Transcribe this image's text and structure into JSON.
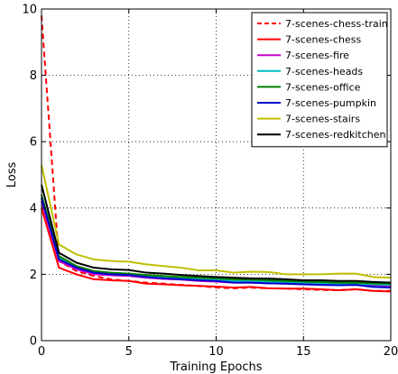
{
  "chart_data": {
    "type": "line",
    "xlabel": "Training Epochs",
    "ylabel": "Loss",
    "xlim": [
      0,
      20
    ],
    "ylim": [
      0,
      10
    ],
    "x_ticks": [
      0,
      5,
      10,
      15,
      20
    ],
    "y_ticks": [
      0,
      2,
      4,
      6,
      8,
      10
    ],
    "grid": true,
    "legend_position": "top-right",
    "x": [
      0,
      1,
      2,
      3,
      4,
      5,
      6,
      7,
      8,
      9,
      10,
      11,
      12,
      13,
      14,
      15,
      16,
      17,
      18,
      19,
      20
    ],
    "series": [
      {
        "name": "7-scenes-chess-train",
        "color": "#ff0000",
        "dash": "dashed",
        "values": [
          9.8,
          2.4,
          2.1,
          1.95,
          1.85,
          1.8,
          1.75,
          1.72,
          1.68,
          1.65,
          1.6,
          1.58,
          1.6,
          1.58,
          1.57,
          1.55,
          1.53,
          1.52,
          1.55,
          1.5,
          1.5
        ]
      },
      {
        "name": "7-scenes-chess",
        "color": "#ff0000",
        "dash": "solid",
        "values": [
          4.0,
          2.2,
          2.0,
          1.85,
          1.82,
          1.8,
          1.72,
          1.7,
          1.67,
          1.65,
          1.63,
          1.6,
          1.62,
          1.58,
          1.57,
          1.57,
          1.55,
          1.52,
          1.55,
          1.5,
          1.48
        ]
      },
      {
        "name": "7-scenes-fire",
        "color": "#cc00cc",
        "dash": "solid",
        "values": [
          4.2,
          2.4,
          2.15,
          2.0,
          1.97,
          1.95,
          1.9,
          1.86,
          1.84,
          1.8,
          1.78,
          1.75,
          1.75,
          1.73,
          1.72,
          1.7,
          1.7,
          1.68,
          1.68,
          1.67,
          1.65
        ]
      },
      {
        "name": "7-scenes-heads",
        "color": "#00bfbf",
        "dash": "solid",
        "values": [
          4.3,
          2.5,
          2.2,
          2.05,
          2.0,
          1.98,
          1.93,
          1.9,
          1.88,
          1.85,
          1.83,
          1.8,
          1.8,
          1.78,
          1.77,
          1.75,
          1.74,
          1.72,
          1.72,
          1.7,
          1.68
        ]
      },
      {
        "name": "7-scenes-office",
        "color": "#008000",
        "dash": "solid",
        "values": [
          4.4,
          2.55,
          2.25,
          2.1,
          2.05,
          2.02,
          1.98,
          1.95,
          1.92,
          1.9,
          1.88,
          1.85,
          1.84,
          1.82,
          1.8,
          1.78,
          1.77,
          1.75,
          1.75,
          1.73,
          1.72
        ]
      },
      {
        "name": "7-scenes-pumpkin",
        "color": "#0000cc",
        "dash": "solid",
        "values": [
          4.3,
          2.45,
          2.2,
          2.05,
          2.0,
          1.98,
          1.92,
          1.88,
          1.85,
          1.82,
          1.8,
          1.75,
          1.75,
          1.73,
          1.72,
          1.7,
          1.68,
          1.67,
          1.68,
          1.62,
          1.6
        ]
      },
      {
        "name": "7-scenes-stairs",
        "color": "#bfbf00",
        "dash": "solid",
        "values": [
          5.3,
          2.9,
          2.6,
          2.45,
          2.4,
          2.38,
          2.3,
          2.25,
          2.2,
          2.12,
          2.12,
          2.05,
          2.08,
          2.07,
          2.0,
          2.0,
          2.0,
          2.02,
          2.02,
          1.92,
          1.9
        ]
      },
      {
        "name": "7-scenes-redkitchen",
        "color": "#000000",
        "dash": "solid",
        "values": [
          4.7,
          2.65,
          2.35,
          2.2,
          2.15,
          2.13,
          2.05,
          2.02,
          1.98,
          1.95,
          1.92,
          1.9,
          1.88,
          1.87,
          1.85,
          1.82,
          1.82,
          1.8,
          1.8,
          1.77,
          1.75
        ]
      }
    ]
  }
}
